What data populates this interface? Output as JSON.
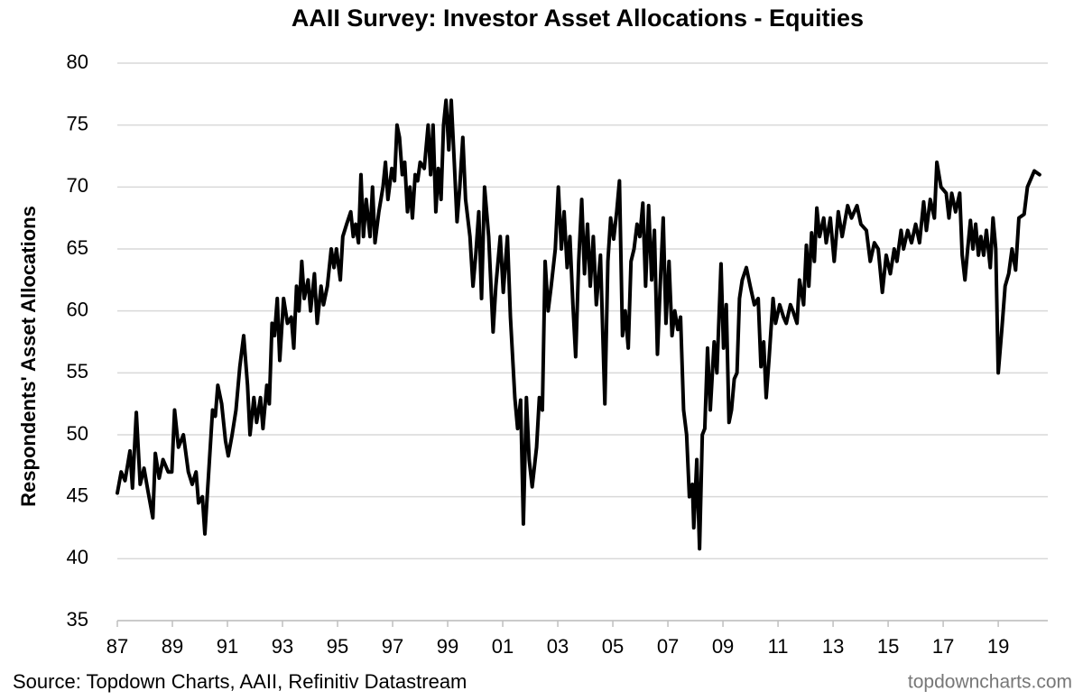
{
  "chart_data": {
    "type": "line",
    "title": "AAII Survey: Investor Asset Allocations - Equities",
    "y_label": "Respondents' Asset Allocations",
    "source": "Source: Topdown Charts, AAII, Refinitiv Datastream",
    "watermark": "topdowncharts.com",
    "color": "#000000",
    "grid": true,
    "xlim": [
      1987,
      2020.8
    ],
    "ylim": [
      35,
      80
    ],
    "yticks": [
      35,
      40,
      45,
      50,
      55,
      60,
      65,
      70,
      75,
      80
    ],
    "xticks": [
      {
        "value": 1987,
        "label": "87"
      },
      {
        "value": 1989,
        "label": "89"
      },
      {
        "value": 1991,
        "label": "91"
      },
      {
        "value": 1993,
        "label": "93"
      },
      {
        "value": 1995,
        "label": "95"
      },
      {
        "value": 1997,
        "label": "97"
      },
      {
        "value": 1999,
        "label": "99"
      },
      {
        "value": 2001,
        "label": "01"
      },
      {
        "value": 2003,
        "label": "03"
      },
      {
        "value": 2005,
        "label": "05"
      },
      {
        "value": 2007,
        "label": "07"
      },
      {
        "value": 2009,
        "label": "09"
      },
      {
        "value": 2011,
        "label": "11"
      },
      {
        "value": 2013,
        "label": "13"
      },
      {
        "value": 2015,
        "label": "15"
      },
      {
        "value": 2017,
        "label": "17"
      },
      {
        "value": 2019,
        "label": "19"
      }
    ],
    "x": [
      1987.0,
      1987.14,
      1987.28,
      1987.46,
      1987.55,
      1987.69,
      1987.83,
      1987.97,
      1988.11,
      1988.29,
      1988.38,
      1988.52,
      1988.66,
      1988.85,
      1988.98,
      1989.08,
      1989.22,
      1989.4,
      1989.58,
      1989.72,
      1989.86,
      1989.95,
      1990.09,
      1990.18,
      1990.32,
      1990.46,
      1990.56,
      1990.65,
      1990.79,
      1990.93,
      1991.03,
      1991.17,
      1991.31,
      1991.45,
      1991.59,
      1991.73,
      1991.82,
      1991.96,
      1992.06,
      1992.2,
      1992.29,
      1992.43,
      1992.52,
      1992.62,
      1992.71,
      1992.81,
      1992.9,
      1993.04,
      1993.18,
      1993.32,
      1993.41,
      1993.51,
      1993.6,
      1993.7,
      1993.79,
      1993.93,
      1994.02,
      1994.16,
      1994.26,
      1994.4,
      1994.49,
      1994.63,
      1994.77,
      1994.87,
      1994.96,
      1995.1,
      1995.19,
      1995.33,
      1995.48,
      1995.57,
      1995.66,
      1995.76,
      1995.85,
      1995.94,
      1996.04,
      1996.18,
      1996.27,
      1996.36,
      1996.5,
      1996.65,
      1996.74,
      1996.83,
      1996.97,
      1997.07,
      1997.16,
      1997.25,
      1997.35,
      1997.44,
      1997.54,
      1997.63,
      1997.72,
      1997.82,
      1997.91,
      1998.0,
      1998.15,
      1998.29,
      1998.38,
      1998.47,
      1998.57,
      1998.66,
      1998.76,
      1998.85,
      1998.94,
      1999.04,
      1999.13,
      1999.24,
      1999.34,
      1999.44,
      1999.55,
      1999.65,
      1999.81,
      1999.92,
      2000.02,
      2000.13,
      2000.23,
      2000.34,
      2000.49,
      2000.65,
      2000.75,
      2000.91,
      2001.02,
      2001.17,
      2001.28,
      2001.44,
      2001.54,
      2001.65,
      2001.75,
      2001.86,
      2001.96,
      2002.07,
      2002.23,
      2002.33,
      2002.44,
      2002.54,
      2002.65,
      2002.76,
      2002.91,
      2003.02,
      2003.13,
      2003.23,
      2003.34,
      2003.44,
      2003.55,
      2003.65,
      2003.76,
      2003.87,
      2003.97,
      2004.08,
      2004.18,
      2004.29,
      2004.4,
      2004.55,
      2004.71,
      2004.82,
      2004.92,
      2005.03,
      2005.14,
      2005.24,
      2005.35,
      2005.45,
      2005.56,
      2005.66,
      2005.77,
      2005.88,
      2005.98,
      2006.09,
      2006.19,
      2006.3,
      2006.41,
      2006.51,
      2006.62,
      2006.72,
      2006.83,
      2006.93,
      2007.04,
      2007.15,
      2007.25,
      2007.36,
      2007.46,
      2007.57,
      2007.68,
      2007.78,
      2007.89,
      2007.94,
      2008.05,
      2008.15,
      2008.25,
      2008.34,
      2008.44,
      2008.54,
      2008.68,
      2008.78,
      2008.93,
      2009.02,
      2009.12,
      2009.22,
      2009.31,
      2009.41,
      2009.51,
      2009.6,
      2009.7,
      2009.85,
      2009.99,
      2010.14,
      2010.28,
      2010.38,
      2010.48,
      2010.57,
      2010.67,
      2010.82,
      2010.91,
      2011.06,
      2011.2,
      2011.3,
      2011.45,
      2011.54,
      2011.69,
      2011.78,
      2011.93,
      2012.03,
      2012.12,
      2012.22,
      2012.32,
      2012.41,
      2012.51,
      2012.66,
      2012.75,
      2012.9,
      2013.04,
      2013.19,
      2013.33,
      2013.53,
      2013.67,
      2013.87,
      2014.01,
      2014.21,
      2014.35,
      2014.5,
      2014.64,
      2014.79,
      2014.93,
      2015.08,
      2015.22,
      2015.32,
      2015.47,
      2015.56,
      2015.71,
      2015.85,
      2016.0,
      2016.14,
      2016.29,
      2016.39,
      2016.53,
      2016.68,
      2016.77,
      2016.92,
      2017.11,
      2017.21,
      2017.31,
      2017.45,
      2017.6,
      2017.69,
      2017.79,
      2017.89,
      2017.99,
      2018.08,
      2018.18,
      2018.28,
      2018.37,
      2018.47,
      2018.57,
      2018.71,
      2018.81,
      2018.91,
      2019.0,
      2019.13,
      2019.25,
      2019.38,
      2019.5,
      2019.63,
      2019.75,
      2019.94,
      2020.06,
      2020.31,
      2020.5
    ],
    "values": [
      45.3,
      47,
      46.3,
      48.7,
      45.7,
      51.8,
      46,
      47.3,
      45.5,
      43.3,
      48.5,
      46.5,
      48,
      47,
      47,
      52,
      49,
      50,
      47,
      46,
      47,
      44.5,
      45,
      42,
      47,
      52,
      51.5,
      54,
      52.5,
      49.5,
      48.3,
      50,
      52,
      55.5,
      58,
      54,
      50,
      53,
      51,
      53,
      50.5,
      54,
      52.5,
      59,
      58,
      61,
      56,
      61,
      59,
      59.5,
      57,
      62,
      60,
      64,
      61,
      62.5,
      60,
      63,
      59,
      62,
      60.5,
      62,
      65,
      63.5,
      65,
      62.5,
      66,
      67,
      68,
      66,
      67,
      65.5,
      71,
      66,
      69,
      66,
      70,
      65.5,
      68,
      70,
      72,
      69,
      71.5,
      70.5,
      75,
      74,
      71,
      72,
      68,
      70,
      67.5,
      71,
      70.5,
      72,
      71.5,
      75,
      71,
      75,
      68,
      71.5,
      69,
      75,
      77,
      73,
      77,
      72,
      67.2,
      70,
      74,
      69,
      66,
      62,
      64.5,
      68,
      61,
      70,
      66,
      58.3,
      62,
      66,
      61.5,
      66,
      59.5,
      53,
      50.5,
      52.8,
      42.8,
      53,
      48,
      45.8,
      49,
      53,
      52,
      64,
      60,
      62,
      65,
      70,
      65,
      68,
      63.5,
      66,
      60.5,
      56.3,
      64,
      69,
      63,
      67,
      62,
      66,
      60.5,
      64.5,
      52.5,
      64,
      67.5,
      65.8,
      68,
      70.5,
      58,
      60,
      57,
      64,
      65,
      67,
      66,
      68.7,
      62,
      68.5,
      62.5,
      66.5,
      56.5,
      62,
      67.5,
      59,
      64,
      58,
      60,
      58.5,
      59.5,
      52,
      50,
      45,
      46,
      42.5,
      48,
      40.8,
      50,
      50.5,
      57,
      52,
      57.5,
      55,
      63.8,
      57,
      60.5,
      51,
      52,
      54.5,
      55,
      61,
      62.5,
      63.5,
      62,
      60.5,
      61,
      55.5,
      57.5,
      53,
      56,
      61,
      59,
      60.5,
      59.5,
      59,
      60.5,
      60,
      59,
      62.5,
      60.5,
      65.3,
      62,
      66.3,
      64,
      68.3,
      66,
      67.5,
      65.5,
      67.5,
      64,
      68,
      66,
      68.5,
      67.5,
      68.5,
      67,
      66.5,
      64,
      65.5,
      65,
      61.5,
      64.5,
      63,
      65,
      64,
      66.5,
      65,
      66.5,
      65.5,
      67,
      65.5,
      68.8,
      66.5,
      69,
      67.5,
      72,
      70,
      69.5,
      67.5,
      69.5,
      68,
      69.5,
      64.5,
      62.5,
      65,
      67.3,
      65,
      67,
      64.5,
      66,
      64.5,
      66.5,
      63.5,
      67.5,
      65,
      55,
      58.5,
      62,
      63,
      65,
      63.3,
      67.5,
      67.8,
      70,
      71.3,
      71
    ]
  }
}
